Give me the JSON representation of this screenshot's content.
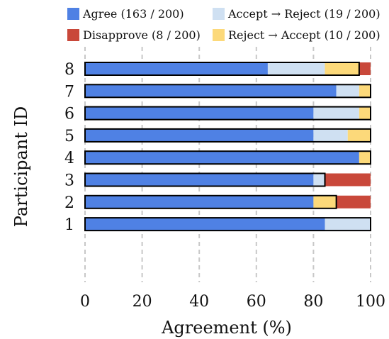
{
  "chart_data": {
    "type": "bar",
    "stacked": true,
    "orientation": "horizontal",
    "title": "",
    "xlabel": "Agreement (%)",
    "ylabel": "Participant ID",
    "xlim": [
      0,
      100
    ],
    "xticks": [
      0,
      20,
      40,
      60,
      80,
      100
    ],
    "grid": "vertical dashed",
    "legend_position": "top",
    "categories": [
      "1",
      "2",
      "3",
      "4",
      "5",
      "6",
      "7",
      "8"
    ],
    "series": [
      {
        "name": "Agree (163 / 200)",
        "color": "#4f81e4",
        "values": [
          84,
          80,
          80,
          96,
          80,
          80,
          88,
          64
        ]
      },
      {
        "name": "Accept → Reject (19 / 200)",
        "color": "#cfe0f2",
        "values": [
          16,
          0,
          4,
          0,
          12,
          16,
          8,
          20
        ]
      },
      {
        "name": "Reject → Accept (10 / 200)",
        "color": "#fcd97a",
        "values": [
          0,
          8,
          0,
          4,
          8,
          4,
          4,
          12
        ]
      },
      {
        "name": "Disapprove (8 / 200)",
        "color": "#c9483a",
        "values": [
          0,
          12,
          16,
          0,
          0,
          0,
          0,
          4
        ]
      }
    ],
    "outlined_series_per_bar": 3
  }
}
